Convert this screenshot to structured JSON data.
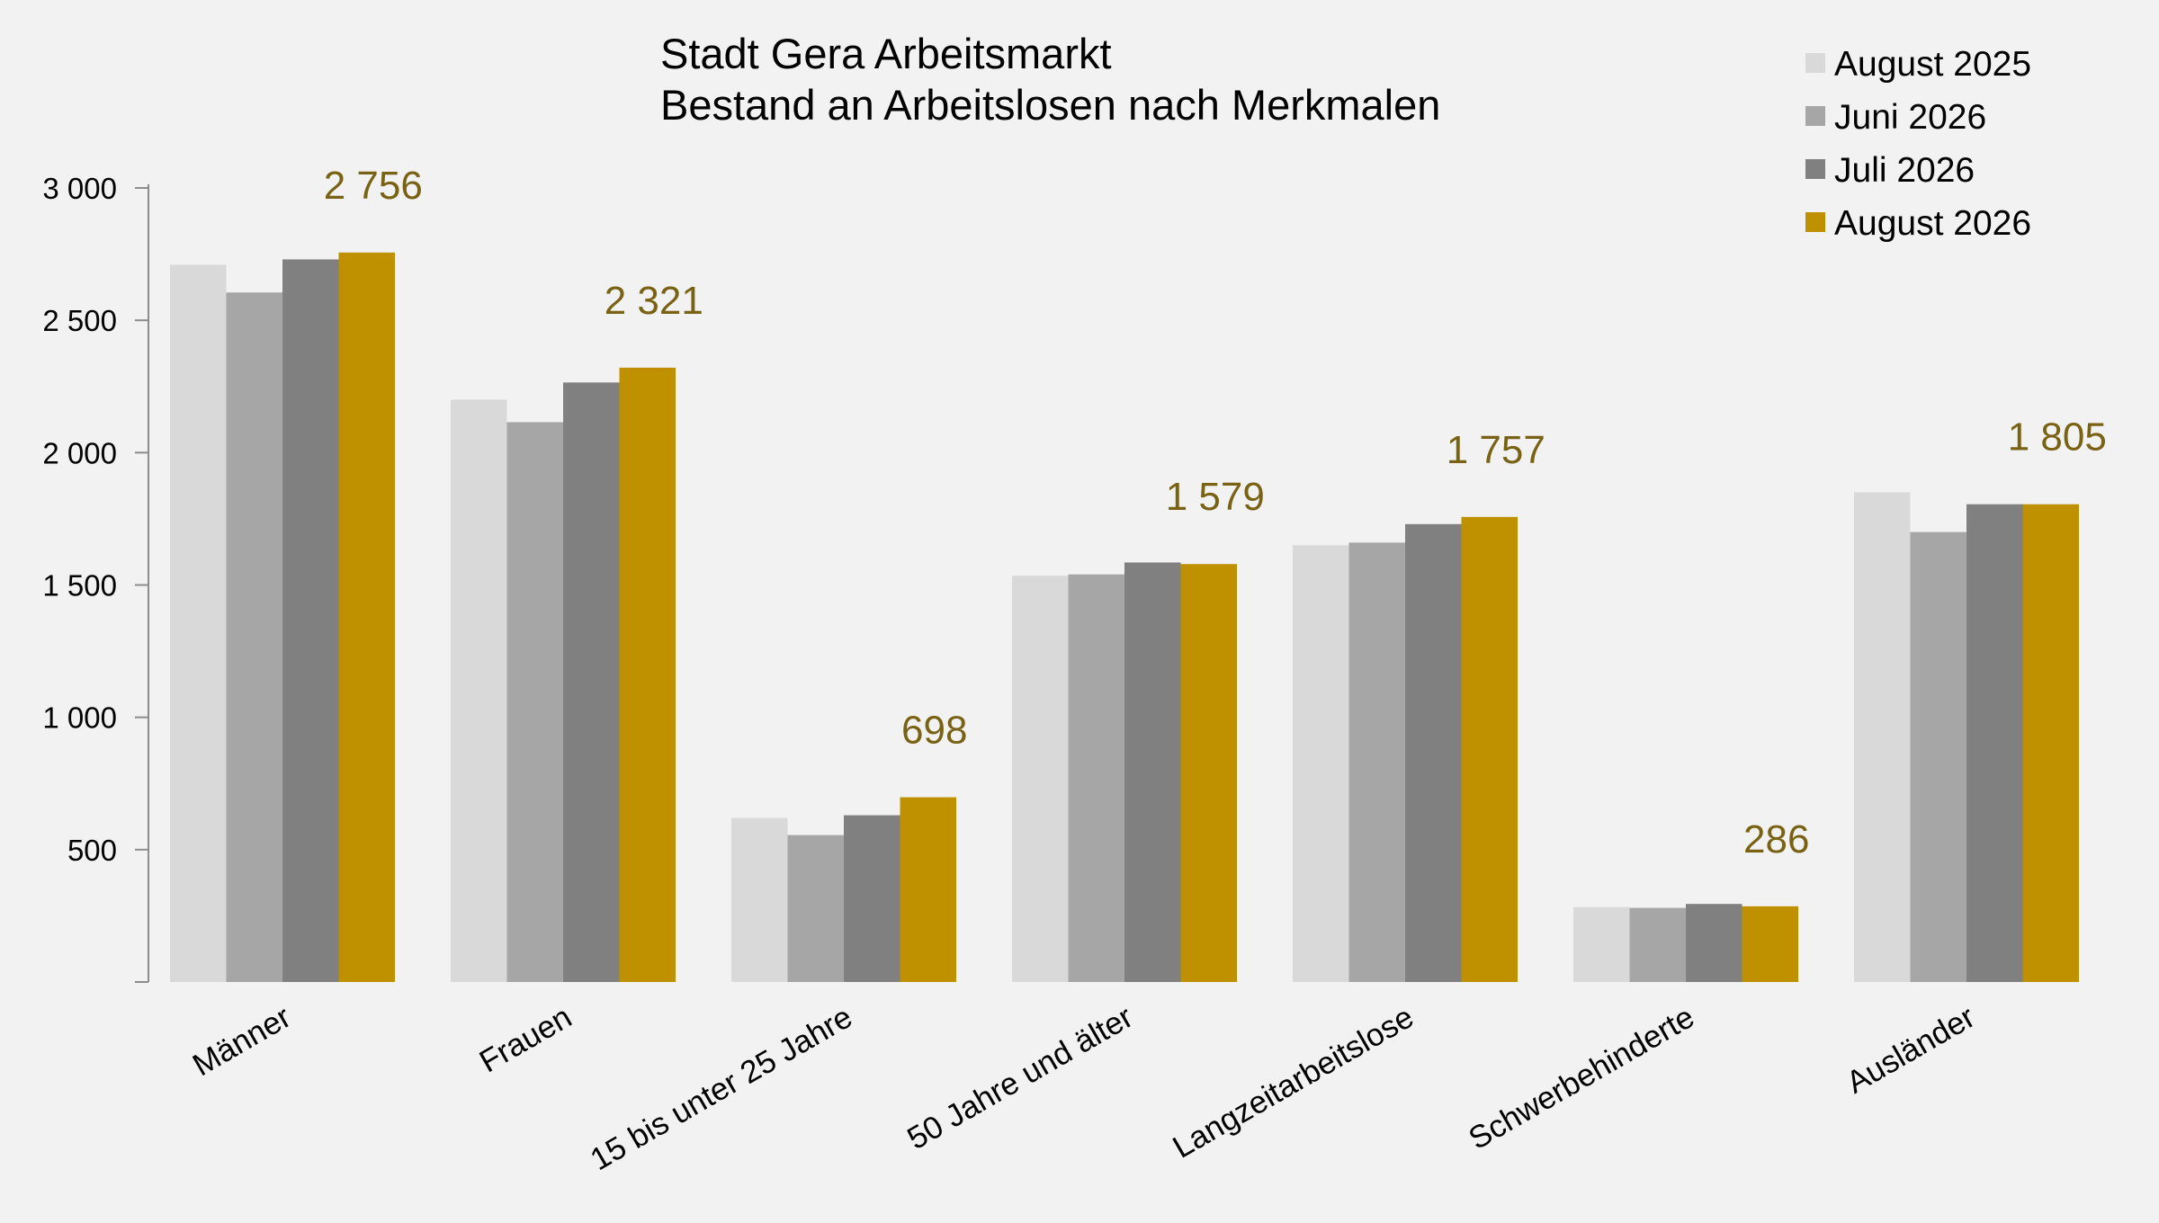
{
  "chart_data": {
    "type": "bar",
    "title": "Stadt Gera Arbeitsmarkt",
    "subtitle": "Bestand an Arbeitslosen nach Merkmalen",
    "categories": [
      "Männer",
      "Frauen",
      "15 bis unter 25 Jahre",
      "50 Jahre und älter",
      "Langzeitarbeitslose",
      "Schwerbehinderte",
      "Ausländer"
    ],
    "series": [
      {
        "name": "August 2025",
        "color": "#d9d9d9",
        "values": [
          2710,
          2200,
          620,
          1535,
          1650,
          283,
          1850
        ]
      },
      {
        "name": "Juni 2026",
        "color": "#a6a6a6",
        "values": [
          2605,
          2115,
          555,
          1540,
          1660,
          280,
          1700
        ]
      },
      {
        "name": "Juli 2026",
        "color": "#808080",
        "values": [
          2730,
          2265,
          630,
          1585,
          1730,
          295,
          1805
        ]
      },
      {
        "name": "August 2026",
        "color": "#bf9000",
        "values": [
          2756,
          2321,
          698,
          1579,
          1757,
          286,
          1805
        ]
      }
    ],
    "data_labels": [
      "2 756",
      "2 321",
      "698",
      "1 579",
      "1 757",
      "286",
      "1 805"
    ],
    "data_label_color": "#7a6214",
    "yticks": [
      {
        "value": 500,
        "label": "500"
      },
      {
        "value": 1000,
        "label": "1 000"
      },
      {
        "value": 1500,
        "label": "1 500"
      },
      {
        "value": 2000,
        "label": "2 000"
      },
      {
        "value": 2500,
        "label": "2 500"
      },
      {
        "value": 3000,
        "label": "3 000"
      }
    ],
    "ylim": [
      0,
      3000
    ],
    "xlabel": "",
    "ylabel": "",
    "grid": false,
    "legend_position": "top-right"
  }
}
